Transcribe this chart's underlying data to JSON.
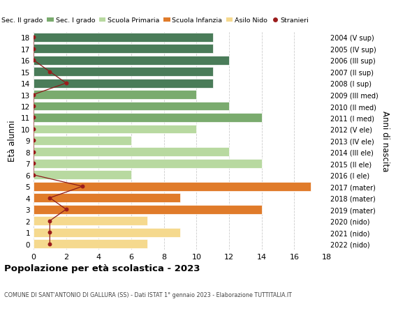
{
  "ages": [
    18,
    17,
    16,
    15,
    14,
    13,
    12,
    11,
    10,
    9,
    8,
    7,
    6,
    5,
    4,
    3,
    2,
    1,
    0
  ],
  "years": [
    "2004 (V sup)",
    "2005 (IV sup)",
    "2006 (III sup)",
    "2007 (II sup)",
    "2008 (I sup)",
    "2009 (III med)",
    "2010 (II med)",
    "2011 (I med)",
    "2012 (V ele)",
    "2013 (IV ele)",
    "2014 (III ele)",
    "2015 (II ele)",
    "2016 (I ele)",
    "2017 (mater)",
    "2018 (mater)",
    "2019 (mater)",
    "2020 (nido)",
    "2021 (nido)",
    "2022 (nido)"
  ],
  "bar_values": [
    11,
    11,
    12,
    11,
    11,
    10,
    12,
    14,
    10,
    6,
    12,
    14,
    6,
    17,
    9,
    14,
    7,
    9,
    7
  ],
  "bar_colors": [
    "#4a7c59",
    "#4a7c59",
    "#4a7c59",
    "#4a7c59",
    "#4a7c59",
    "#7aab6e",
    "#7aab6e",
    "#7aab6e",
    "#b8d9a0",
    "#b8d9a0",
    "#b8d9a0",
    "#b8d9a0",
    "#b8d9a0",
    "#e07b2a",
    "#e07b2a",
    "#e07b2a",
    "#f5d98e",
    "#f5d98e",
    "#f5d98e"
  ],
  "stranieri_x": [
    0,
    0,
    0,
    1,
    2,
    0,
    0,
    0,
    0,
    0,
    0,
    0,
    0,
    3,
    1,
    2,
    1,
    1,
    1
  ],
  "title_bold": "Popolazione per età scolastica - 2023",
  "subtitle": "COMUNE DI SANT'ANTONIO DI GALLURA (SS) - Dati ISTAT 1° gennaio 2023 - Elaborazione TUTTITALIA.IT",
  "ylabel_left": "Età alunni",
  "ylabel_right": "Anni di nascita",
  "legend_labels": [
    "Sec. II grado",
    "Sec. I grado",
    "Scuola Primaria",
    "Scuola Infanzia",
    "Asilo Nido",
    "Stranieri"
  ],
  "legend_colors": [
    "#4a7c59",
    "#7aab6e",
    "#b8d9a0",
    "#e07b2a",
    "#f5d98e",
    "#9b1c1c"
  ],
  "background_color": "#ffffff",
  "grid_color": "#cccccc"
}
